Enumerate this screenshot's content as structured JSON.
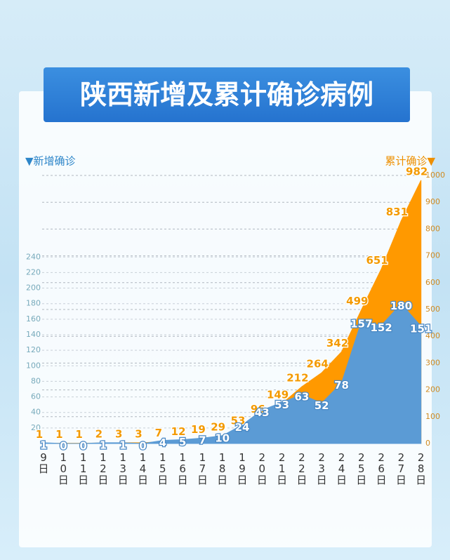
{
  "chart_data": {
    "type": "area",
    "title": "陕西新增及累计确诊病例",
    "y_label": "▼新增确诊",
    "y2_label": "累计确诊▼",
    "categories": [
      "9日",
      "10日",
      "11日",
      "12日",
      "13日",
      "14日",
      "15日",
      "16日",
      "17日",
      "18日",
      "19日",
      "20日",
      "21日",
      "22日",
      "23日",
      "24日",
      "25日",
      "26日",
      "27日",
      "28日"
    ],
    "series": [
      {
        "color": "#5b9bd5",
        "values": [
          1,
          0,
          0,
          1,
          1,
          0,
          4,
          5,
          7,
          10,
          24,
          43,
          53,
          63,
          52,
          78,
          157,
          152,
          180,
          151
        ]
      },
      {
        "color": "#ff9900",
        "axis": "y2",
        "values": [
          1,
          1,
          1,
          2,
          3,
          3,
          7,
          12,
          19,
          29,
          53,
          96,
          149,
          212,
          264,
          342,
          499,
          651,
          831,
          982
        ]
      }
    ],
    "ylim": [
      0,
      345
    ],
    "yticks": [
      20,
      40,
      60,
      80,
      100,
      120,
      140,
      160,
      180,
      200,
      220,
      240
    ],
    "y2lim": [
      0,
      1000
    ],
    "y2ticks": [
      0,
      100,
      200,
      300,
      400,
      500,
      600,
      700,
      800,
      900,
      1000
    ],
    "grid": true
  }
}
